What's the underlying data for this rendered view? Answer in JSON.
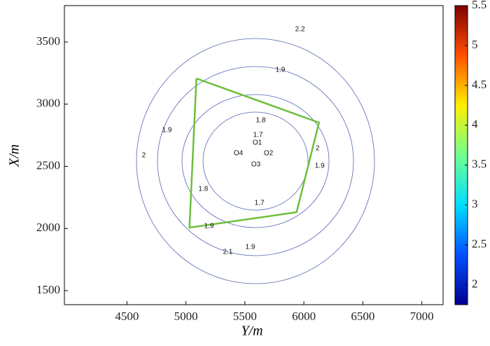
{
  "chart_data": {
    "type": "contour",
    "xlabel": "Y/m",
    "ylabel": "X/m",
    "xlim": [
      3970,
      7180
    ],
    "ylim": [
      1387,
      3793
    ],
    "xticks": [
      4500,
      5000,
      5500,
      6000,
      6500,
      7000
    ],
    "yticks": [
      1500,
      2000,
      2500,
      3000,
      3500
    ],
    "clim": [
      1.75,
      5.5
    ],
    "cticks": [
      2,
      2.5,
      3,
      3.5,
      4,
      4.5,
      5,
      5.5
    ],
    "colormap": [
      "#00008f",
      "#0050ff",
      "#00dfff",
      "#70ff8f",
      "#ffef00",
      "#ff5000",
      "#800000"
    ],
    "boundary": {
      "color": "#6cbf3a",
      "x": [
        5089,
        6128,
        5938,
        5030,
        5089
      ],
      "y": [
        3207,
        2852,
        2131,
        2007,
        3207
      ]
    },
    "points": [
      {
        "label": "O1",
        "x": 5605,
        "y": 2690
      },
      {
        "label": "O2",
        "x": 5700,
        "y": 2605
      },
      {
        "label": "O3",
        "x": 5593,
        "y": 2515
      },
      {
        "label": "O4",
        "x": 5445,
        "y": 2605
      }
    ],
    "contour_labels": [
      {
        "x": 5800,
        "y": 3275,
        "level": 1.9
      },
      {
        "x": 4839,
        "y": 2790,
        "level": 1.9
      },
      {
        "x": 4643,
        "y": 2587,
        "level": 2
      },
      {
        "x": 5611,
        "y": 2751,
        "level": 1.7
      },
      {
        "x": 5635,
        "y": 2869,
        "level": 1.8
      },
      {
        "x": 5147,
        "y": 2317,
        "level": 1.8
      },
      {
        "x": 5623,
        "y": 2204,
        "level": 1.7
      },
      {
        "x": 5545,
        "y": 1849,
        "level": 1.9
      },
      {
        "x": 6116,
        "y": 2644,
        "level": 2
      },
      {
        "x": 6134,
        "y": 2503,
        "level": 1.9
      },
      {
        "x": 5967,
        "y": 3601,
        "level": 2.2
      },
      {
        "x": 5355,
        "y": 1810,
        "level": 2.1
      },
      {
        "x": 5195,
        "y": 2018,
        "level": 1.9
      }
    ]
  }
}
